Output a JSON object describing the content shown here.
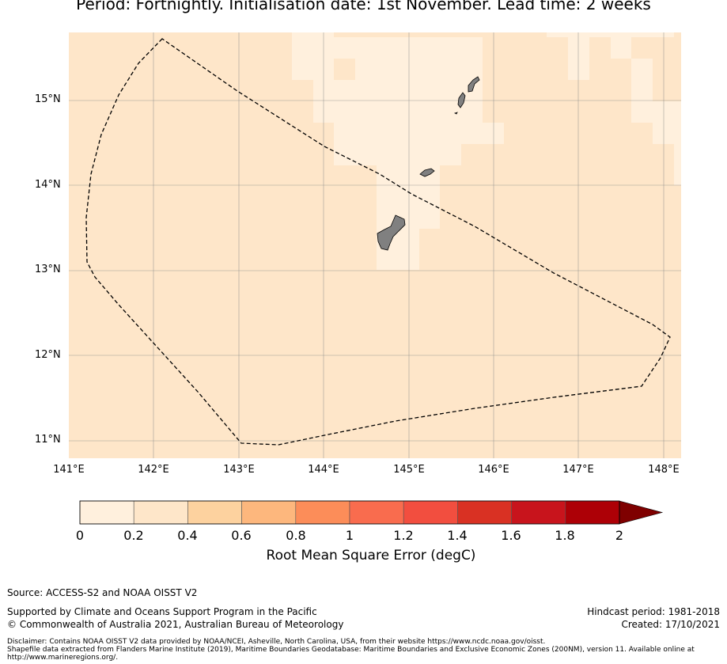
{
  "title": "Period: Fortnightly. Initialisation date: 1st November. Lead time: 2 weeks",
  "map": {
    "lat_labels": [
      "15°N",
      "14°N",
      "13°N",
      "12°N",
      "11°N"
    ],
    "lon_labels": [
      "141°E",
      "142°E",
      "143°E",
      "144°E",
      "145°E",
      "146°E",
      "147°E",
      "148°E"
    ],
    "background_color": "#fee6c9",
    "light_color": "#fff0dd",
    "land_color": "#808080",
    "region_outline": "dashed"
  },
  "colorbar": {
    "ticks": [
      "0",
      "0.2",
      "0.4",
      "0.6",
      "0.8",
      "1",
      "1.2",
      "1.4",
      "1.6",
      "1.8",
      "2"
    ],
    "colors": [
      "#fff0dd",
      "#fee6c9",
      "#fdd29f",
      "#fdb77d",
      "#fc8d59",
      "#f96c4e",
      "#f24e3f",
      "#d93123",
      "#c8141c",
      "#ad0006"
    ],
    "extend_color": "#7f0000",
    "label": "Root Mean Square Error (degC)"
  },
  "footer": {
    "source": "Source: ACCESS-S2 and NOAA OISST V2",
    "supported": "Supported by Climate and Oceans Support Program in the Pacific",
    "copyright": "© Commonwealth of Australia 2021, Australian Bureau of Meteorology",
    "hindcast": "Hindcast period: 1981-2018",
    "created": "Created: 17/10/2021",
    "disclaimer_1": "Disclaimer: Contains NOAA OISST V2 data provided by NOAA/NCEI, Asheville, North Carolina, USA, from their website https://www.ncdc.noaa.gov/oisst.",
    "disclaimer_2": "Shapefile data extracted from Flanders Marine Institute (2019), Maritime Boundaries Geodatabase: Maritime Boundaries and Exclusive Economic Zones (200NM), version 11. Available online at http://www.marineregions.org/."
  }
}
